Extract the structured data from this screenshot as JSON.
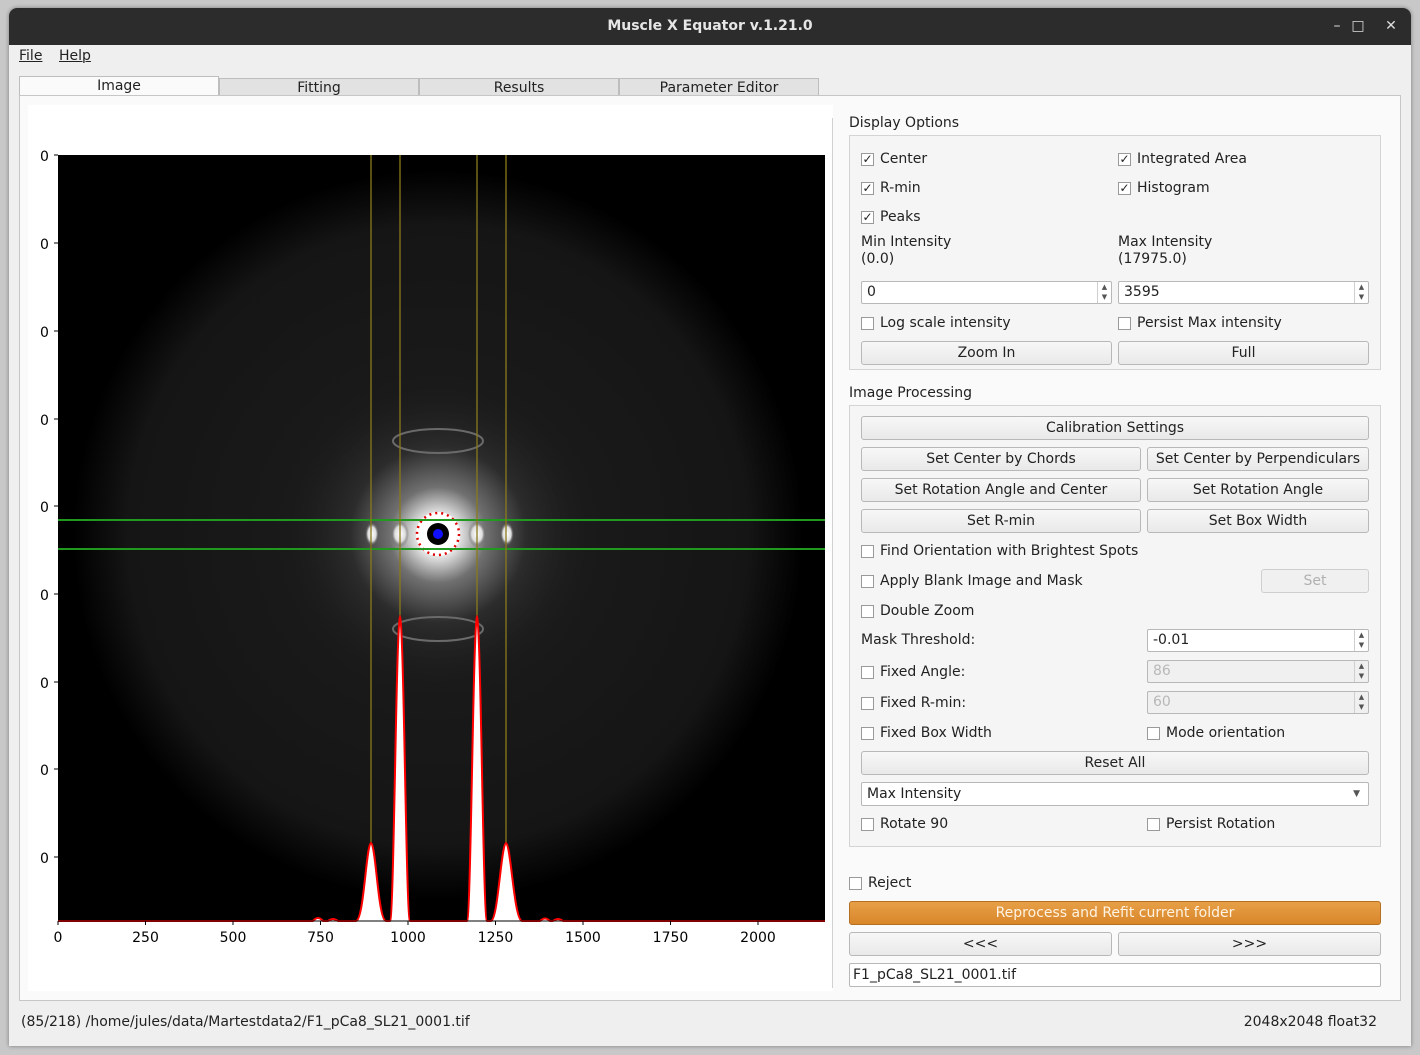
{
  "window": {
    "title": "Muscle X Equator v.1.21.0",
    "min_icon": "–",
    "max_icon": "□",
    "close_icon": "✕"
  },
  "menu": {
    "file": "File",
    "help": "Help"
  },
  "tabs": [
    "Image",
    "Fitting",
    "Results",
    "Parameter Editor"
  ],
  "plot": {
    "y_ticks": [
      "0",
      "0",
      "0",
      "0",
      "0",
      "0",
      "0",
      "0",
      "0"
    ],
    "x_ticks": [
      "0",
      "250",
      "500",
      "750",
      "1000",
      "1250",
      "1500",
      "1750",
      "2000"
    ]
  },
  "display_options": {
    "title": "Display Options",
    "center": "Center",
    "integrated_area": "Integrated Area",
    "rmin": "R-min",
    "histogram": "Histogram",
    "peaks": "Peaks",
    "min_intensity_label": "Min Intensity",
    "min_intensity_range": "(0.0)",
    "max_intensity_label": "Max Intensity",
    "max_intensity_range": "(17975.0)",
    "min_value": "0",
    "max_value": "3595",
    "log_scale": "Log scale intensity",
    "persist_max": "Persist Max intensity",
    "zoom_in": "Zoom In",
    "full": "Full"
  },
  "image_processing": {
    "title": "Image Processing",
    "calibration": "Calibration Settings",
    "center_chords": "Set Center by Chords",
    "center_perp": "Set Center by Perpendiculars",
    "rot_angle_center": "Set Rotation Angle and Center",
    "rot_angle": "Set Rotation Angle",
    "set_rmin": "Set R-min",
    "set_box_width": "Set Box Width",
    "find_orientation": "Find Orientation with Brightest Spots",
    "apply_blank": "Apply Blank Image and Mask",
    "set": "Set",
    "double_zoom": "Double Zoom",
    "mask_threshold_label": "Mask Threshold:",
    "mask_threshold_value": "-0.01",
    "fixed_angle": "Fixed Angle:",
    "fixed_angle_value": "86",
    "fixed_rmin": "Fixed R-min:",
    "fixed_rmin_value": "60",
    "fixed_box_width": "Fixed Box Width",
    "mode_orientation": "Mode orientation",
    "reset_all": "Reset All",
    "intensity_mode": "Max Intensity",
    "rotate90": "Rotate 90",
    "persist_rotation": "Persist Rotation"
  },
  "bottom": {
    "reject": "Reject",
    "reprocess": "Reprocess and Refit current folder",
    "prev": "<<<",
    "next": ">>>",
    "filename": "F1_pCa8_SL21_0001.tif"
  },
  "status": {
    "path": "(85/218) /home/jules/data/Martestdata2/F1_pCa8_SL21_0001.tif",
    "info": "2048x2048 float32"
  },
  "colors": {
    "accent": "#d9862a",
    "fit_line": "#ff0000",
    "box_line": "#1f9a1f",
    "peak_line": "#8a7a1a"
  }
}
